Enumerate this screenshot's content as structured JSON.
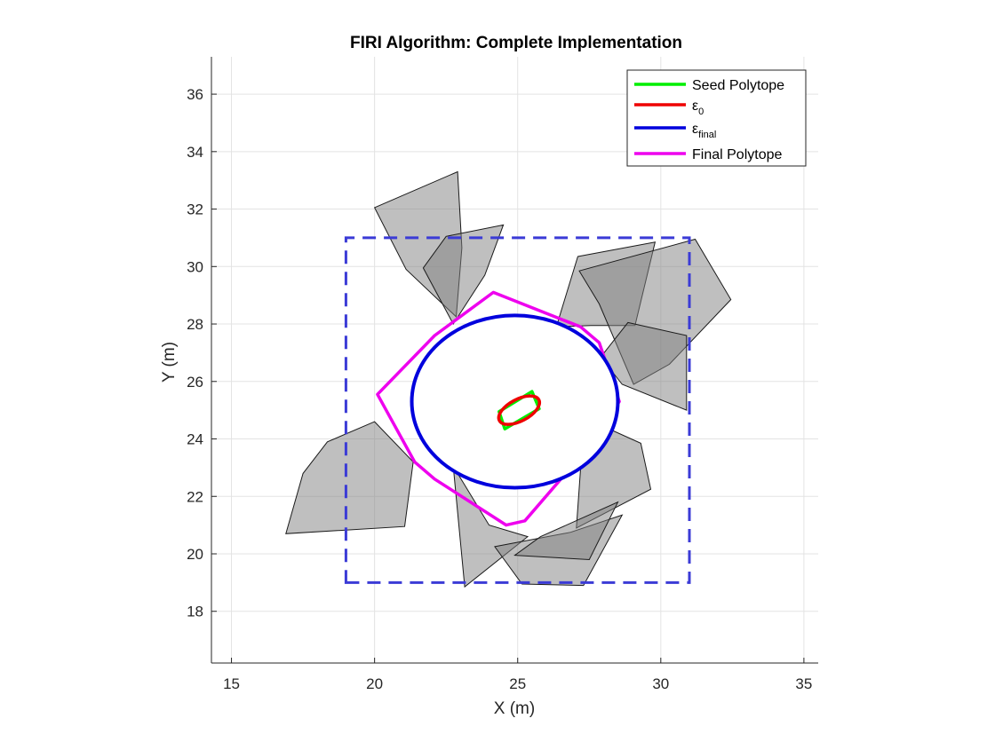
{
  "chart_data": {
    "type": "line",
    "title": "FIRI Algorithm: Complete Implementation",
    "xlabel": "X (m)",
    "ylabel": "Y (m)",
    "xlim": [
      14.3,
      35.5
    ],
    "ylim": [
      16.2,
      37.3
    ],
    "xticks": [
      15,
      20,
      25,
      30,
      35
    ],
    "yticks": [
      18,
      20,
      22,
      24,
      26,
      28,
      30,
      32,
      34,
      36
    ],
    "grid": true,
    "legend_position": "top-right",
    "legend": [
      {
        "label": "Seed Polytope",
        "sub": "",
        "color": "#00ee00"
      },
      {
        "label": "ε",
        "sub": "0",
        "color": "#ee0000"
      },
      {
        "label": "ε",
        "sub": "final",
        "color": "#0000dd"
      },
      {
        "label": "Final Polytope",
        "sub": "",
        "color": "#ee00ee"
      }
    ],
    "obstacles": [
      [
        [
          20,
          32.05
        ],
        [
          22.9,
          33.3
        ],
        [
          23.05,
          30.65
        ],
        [
          22.85,
          28.25
        ],
        [
          21.1,
          29.9
        ]
      ],
      [
        [
          21.7,
          29.95
        ],
        [
          22.5,
          31.05
        ],
        [
          24.5,
          31.45
        ],
        [
          23.85,
          29.7
        ],
        [
          22.75,
          28.0
        ]
      ],
      [
        [
          27.1,
          30.35
        ],
        [
          29.8,
          30.85
        ],
        [
          29.1,
          27.95
        ],
        [
          27.55,
          27.95
        ],
        [
          26.35,
          27.9
        ]
      ],
      [
        [
          27.15,
          29.85
        ],
        [
          31.2,
          30.95
        ],
        [
          32.45,
          28.85
        ],
        [
          30.3,
          26.6
        ],
        [
          29.05,
          25.9
        ],
        [
          27.85,
          28.7
        ]
      ],
      [
        [
          28.85,
          28.05
        ],
        [
          30.9,
          27.6
        ],
        [
          30.9,
          25.0
        ],
        [
          28.65,
          25.9
        ],
        [
          27.9,
          26.85
        ]
      ],
      [
        [
          16.9,
          20.7
        ],
        [
          17.5,
          22.8
        ],
        [
          18.35,
          23.9
        ],
        [
          20,
          24.6
        ],
        [
          21.35,
          23.2
        ],
        [
          21.05,
          20.95
        ]
      ],
      [
        [
          27.05,
          20.9
        ],
        [
          27.25,
          23.7
        ],
        [
          27.85,
          24.5
        ],
        [
          29.3,
          23.85
        ],
        [
          29.65,
          22.25
        ]
      ],
      [
        [
          22.75,
          23.05
        ],
        [
          24.0,
          21.0
        ],
        [
          25.35,
          20.6
        ],
        [
          23.15,
          18.85
        ]
      ],
      [
        [
          24.2,
          20.25
        ],
        [
          26.85,
          20.75
        ],
        [
          28.65,
          21.35
        ],
        [
          27.3,
          18.9
        ],
        [
          25.15,
          18.95
        ]
      ],
      [
        [
          24.9,
          19.95
        ],
        [
          27.5,
          19.8
        ],
        [
          28.5,
          21.8
        ],
        [
          25.8,
          20.6
        ]
      ]
    ],
    "box": [
      [
        19,
        19
      ],
      [
        31,
        19
      ],
      [
        31,
        31
      ],
      [
        19,
        31
      ]
    ],
    "final_polytope": [
      [
        20.1,
        25.55
      ],
      [
        22.1,
        27.6
      ],
      [
        24.15,
        29.1
      ],
      [
        27.2,
        27.9
      ],
      [
        27.85,
        27.35
      ],
      [
        28.55,
        25.3
      ],
      [
        27.5,
        23.75
      ],
      [
        25.25,
        21.15
      ],
      [
        24.6,
        21.0
      ],
      [
        22.1,
        22.6
      ],
      [
        21.4,
        23.2
      ]
    ],
    "seed_polytope": [
      [
        24.55,
        24.35
      ],
      [
        25.75,
        25.05
      ],
      [
        25.5,
        25.65
      ],
      [
        24.35,
        24.95
      ]
    ],
    "ellipse_e0": {
      "cx": 25.05,
      "cy": 25.0,
      "rx": 0.78,
      "ry": 0.38,
      "angle_deg": 28
    },
    "ellipse_final": {
      "cx": 24.9,
      "cy": 25.3,
      "rx": 3.6,
      "ry": 3.0,
      "angle_deg": 0
    }
  }
}
